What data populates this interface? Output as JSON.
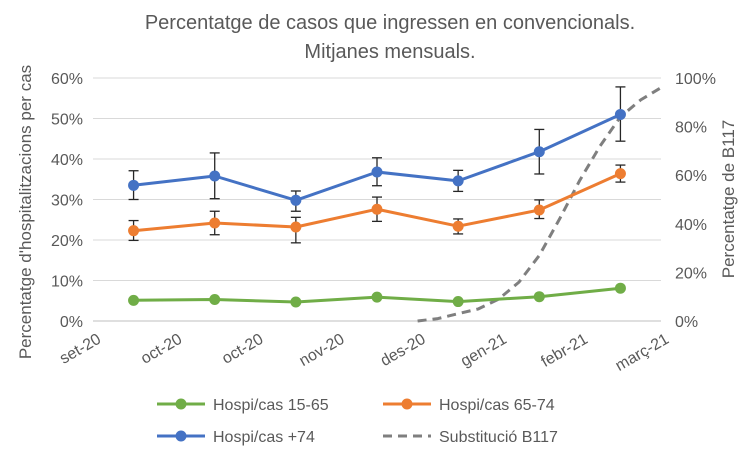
{
  "chart_data": {
    "type": "line",
    "title_line1": "Percentatge de casos que ingressen en convencionals.",
    "title_line2": "Mitjanes mensuals.",
    "ylabel_left": "Percentatge d'hospitalitzacions per cas",
    "ylabel_right": "Percentatge de B117",
    "x_tick_labels": [
      "set-20",
      "oct-20",
      "oct-20",
      "nov-20",
      "des-20",
      "gen-21",
      "febr-21",
      "març-21"
    ],
    "y_left": {
      "min": 0,
      "max": 60,
      "step": 10,
      "tick_labels": [
        "0%",
        "10%",
        "20%",
        "30%",
        "40%",
        "50%",
        "60%"
      ]
    },
    "y_right": {
      "min": 0,
      "max": 100,
      "step": 20,
      "tick_labels": [
        "0%",
        "20%",
        "40%",
        "60%",
        "80%",
        "100%"
      ]
    },
    "grid": true,
    "legend_position": "bottom",
    "series": [
      {
        "name": "Hospi/cas 15-65",
        "color": "#70AD47",
        "axis": "left",
        "x": [
          0.5,
          1.5,
          2.5,
          3.5,
          4.5,
          5.5,
          6.5
        ],
        "values": [
          5.1,
          5.3,
          4.7,
          5.9,
          4.8,
          6.0,
          8.1
        ]
      },
      {
        "name": "Hospi/cas 65-74",
        "color": "#ED7D31",
        "axis": "left",
        "x": [
          0.5,
          1.5,
          2.5,
          3.5,
          4.5,
          5.5,
          6.5
        ],
        "values": [
          22.3,
          24.2,
          23.2,
          27.6,
          23.4,
          27.4,
          36.4
        ],
        "error_low": [
          19.9,
          21.3,
          19.3,
          24.6,
          21.5,
          25.3,
          34.3
        ],
        "error_high": [
          24.8,
          27.1,
          25.6,
          30.6,
          25.2,
          29.9,
          38.5
        ]
      },
      {
        "name": "Hospi/cas +74",
        "color": "#4472C4",
        "axis": "left",
        "x": [
          0.5,
          1.5,
          2.5,
          3.5,
          4.5,
          5.5,
          6.5
        ],
        "values": [
          33.5,
          35.8,
          29.8,
          36.8,
          34.6,
          41.8,
          51.0
        ],
        "error_low": [
          30.0,
          30.2,
          27.1,
          33.4,
          32.0,
          36.3,
          44.4
        ],
        "error_high": [
          37.1,
          41.5,
          32.1,
          40.3,
          37.2,
          47.3,
          57.8
        ]
      },
      {
        "name": "Substitució B117",
        "color": "#7F7F7F",
        "axis": "right",
        "dashed": true,
        "x": [
          4.0,
          4.25,
          4.5,
          4.75,
          5.0,
          5.25,
          5.5,
          5.75,
          6.0,
          6.25,
          6.5,
          6.75,
          7.0
        ],
        "values": [
          0,
          1,
          3,
          5,
          9,
          16,
          27,
          42,
          58,
          72,
          84,
          91,
          96
        ]
      }
    ],
    "legend": [
      {
        "label": "Hospi/cas 15-65",
        "series": 0
      },
      {
        "label": "Hospi/cas 65-74",
        "series": 1
      },
      {
        "label": "Hospi/cas +74",
        "series": 2
      },
      {
        "label": "Substitució B117",
        "series": 3
      }
    ]
  }
}
